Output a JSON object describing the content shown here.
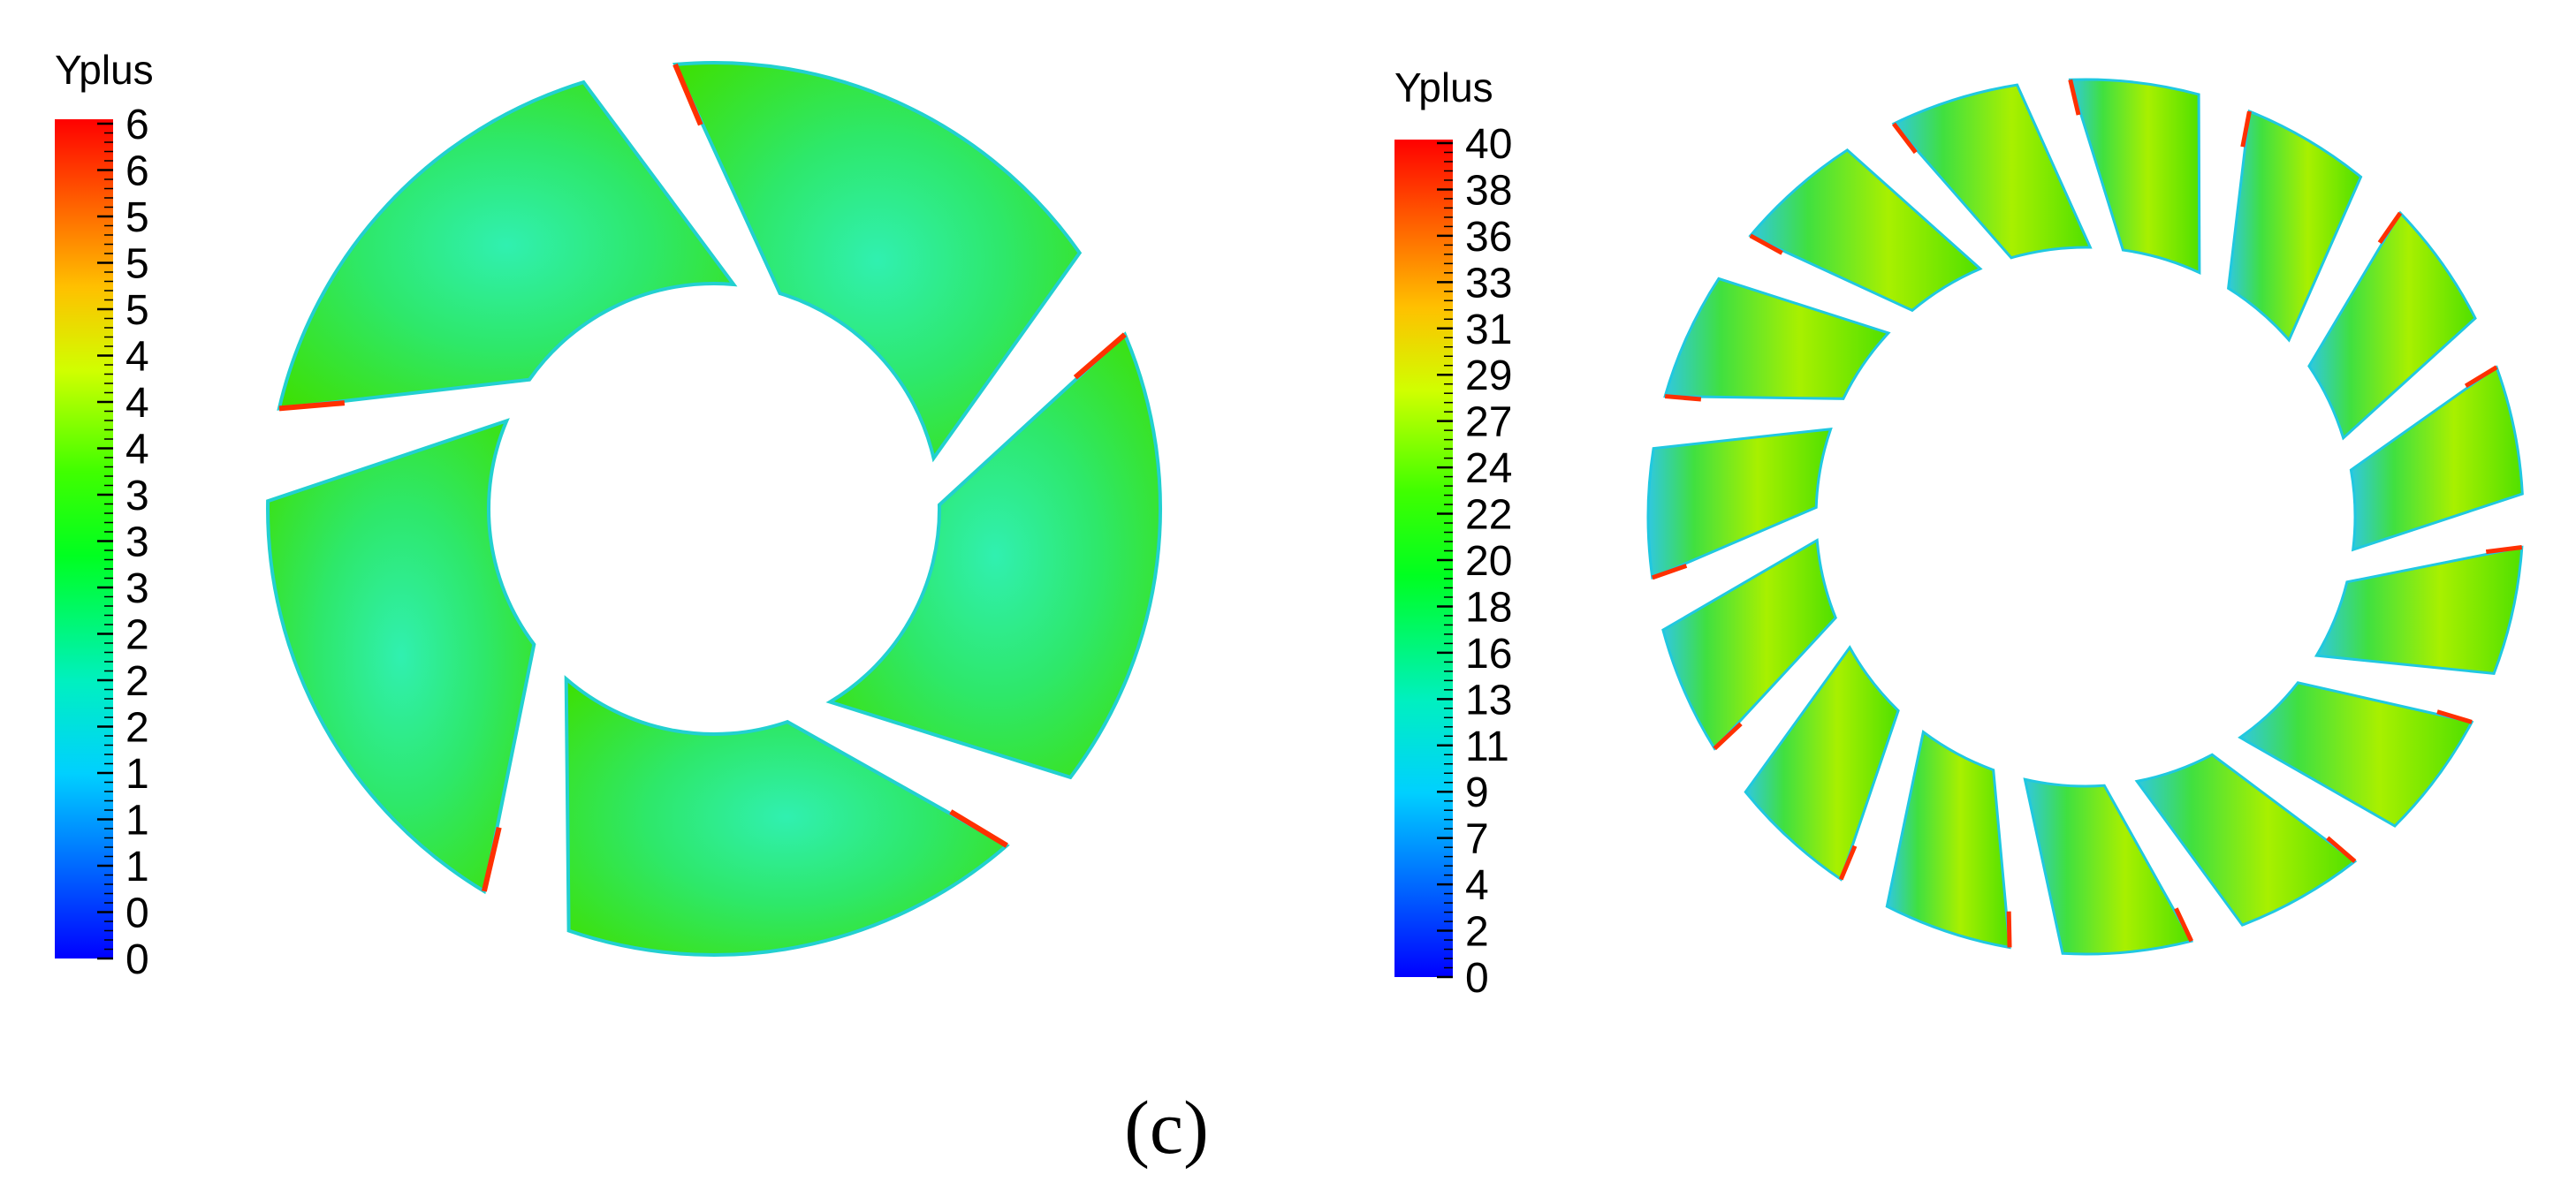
{
  "left_panel": {
    "legend_title": "Yplus",
    "tick_labels": [
      "6",
      "6",
      "5",
      "5",
      "5",
      "4",
      "4",
      "4",
      "3",
      "3",
      "3",
      "2",
      "2",
      "2",
      "1",
      "1",
      "1",
      "0",
      "0"
    ],
    "blade_count": 5
  },
  "right_panel": {
    "legend_title": "Yplus",
    "tick_labels": [
      "40",
      "38",
      "36",
      "33",
      "31",
      "29",
      "27",
      "24",
      "22",
      "20",
      "18",
      "16",
      "13",
      "11",
      "9",
      "7",
      "4",
      "2",
      "0"
    ],
    "blade_count": 15
  },
  "caption": "(c)",
  "colors": {
    "scale": [
      "#ff0000",
      "#ff8000",
      "#ffff00",
      "#00ff00",
      "#00ffff",
      "#0000ff"
    ],
    "dominant_surface": "#38e000",
    "low_region": "#30f0b0",
    "edge_high": "#ff3000"
  }
}
